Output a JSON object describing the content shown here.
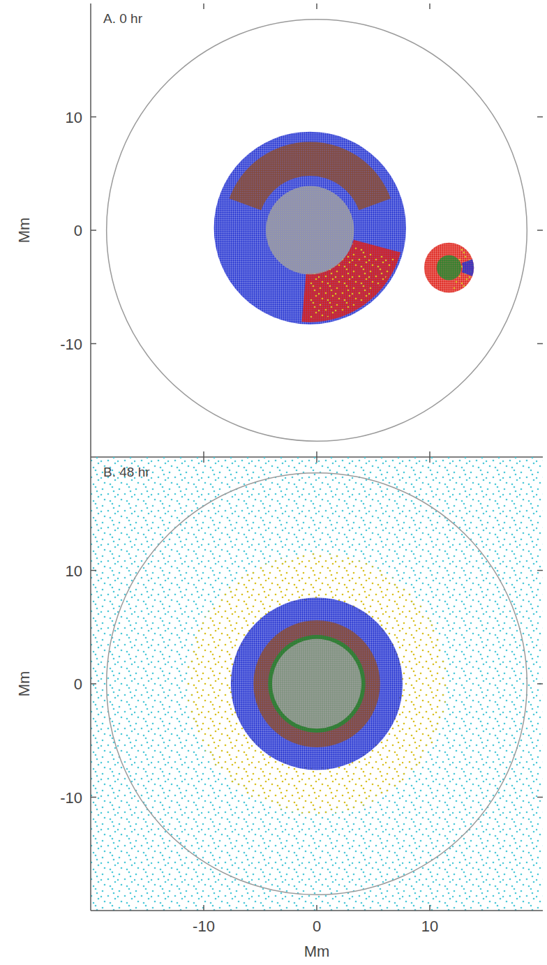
{
  "chart_data": [
    {
      "type": "scatter",
      "title": "A. 0 hr",
      "ylabel": "Mm",
      "xlim": [
        -20,
        20
      ],
      "ylim": [
        -20,
        20
      ],
      "xticks": [
        -10,
        0,
        10
      ],
      "yticks": [
        -10,
        0,
        10
      ],
      "tick_labels": "y",
      "boundary_radius": 18.6,
      "regions": [
        {
          "color": "#1f2fd0",
          "x": -0.6,
          "y": 0.2,
          "r_inner": 0,
          "r_outer": 8.5,
          "marker": "dense"
        },
        {
          "color": "#8b4a2b",
          "x": -0.6,
          "y": 0.2,
          "r_inner": 4.6,
          "r_outer": 7.6,
          "start_angle": 20,
          "end_angle": 160,
          "marker": "dense"
        },
        {
          "color": "#dd1a12",
          "x": -0.6,
          "y": 0.2,
          "r_inner": 4.0,
          "r_outer": 8.3,
          "start_angle": -95,
          "end_angle": -15,
          "marker": "dense"
        },
        {
          "color": "#d8c020",
          "x": -0.6,
          "y": 0.2,
          "r_inner": 4.0,
          "r_outer": 8.0,
          "start_angle": -90,
          "end_angle": -20,
          "marker": "sparse"
        },
        {
          "color": "#a0a0a0",
          "x": -0.6,
          "y": 0.0,
          "r_inner": 0,
          "r_outer": 3.9,
          "marker": "dense"
        },
        {
          "color": "#dd1a12",
          "x": 11.7,
          "y": -3.3,
          "r_inner": 0,
          "r_outer": 2.2,
          "marker": "dense"
        },
        {
          "color": "#d8c020",
          "x": 11.7,
          "y": -3.3,
          "r_inner": 1.0,
          "r_outer": 2.2,
          "start_angle": -80,
          "end_angle": 60,
          "marker": "sparse"
        },
        {
          "color": "#1f2fd0",
          "x": 11.7,
          "y": -3.3,
          "r_inner": 1.2,
          "r_outer": 2.2,
          "start_angle": -20,
          "end_angle": 20,
          "marker": "dense"
        },
        {
          "color": "#1f8a2e",
          "x": 11.7,
          "y": -3.3,
          "r_inner": 0,
          "r_outer": 1.1,
          "marker": "dense"
        }
      ]
    },
    {
      "type": "scatter",
      "title": "B. 48 hr",
      "xlabel": "Mm",
      "ylabel": "Mm",
      "xlim": [
        -20,
        20
      ],
      "ylim": [
        -20,
        20
      ],
      "xticks": [
        -10,
        0,
        10
      ],
      "yticks": [
        -10,
        0,
        10
      ],
      "tick_labels": true,
      "boundary_radius": 18.6,
      "regions": [
        {
          "color": "#4cc8d8",
          "x": 0,
          "y": 0,
          "r_inner": 11.0,
          "r_outer": 30,
          "marker": "sparse"
        },
        {
          "color": "#d8c020",
          "x": 0,
          "y": 0,
          "r_inner": 7.4,
          "r_outer": 11.5,
          "marker": "sparse"
        },
        {
          "color": "#1f2fd0",
          "x": 0,
          "y": 0,
          "r_inner": 0,
          "r_outer": 7.6,
          "marker": "dense"
        },
        {
          "color": "#8b4a2b",
          "x": 0,
          "y": 0,
          "r_inner": 0,
          "r_outer": 5.6,
          "marker": "dense"
        },
        {
          "color": "#1f8a2e",
          "x": 0,
          "y": 0,
          "r_inner": 0,
          "r_outer": 4.3,
          "marker": "dense"
        },
        {
          "color": "#a0a0a0",
          "x": 0,
          "y": 0,
          "r_inner": 0,
          "r_outer": 3.95,
          "marker": "dense"
        }
      ]
    }
  ]
}
